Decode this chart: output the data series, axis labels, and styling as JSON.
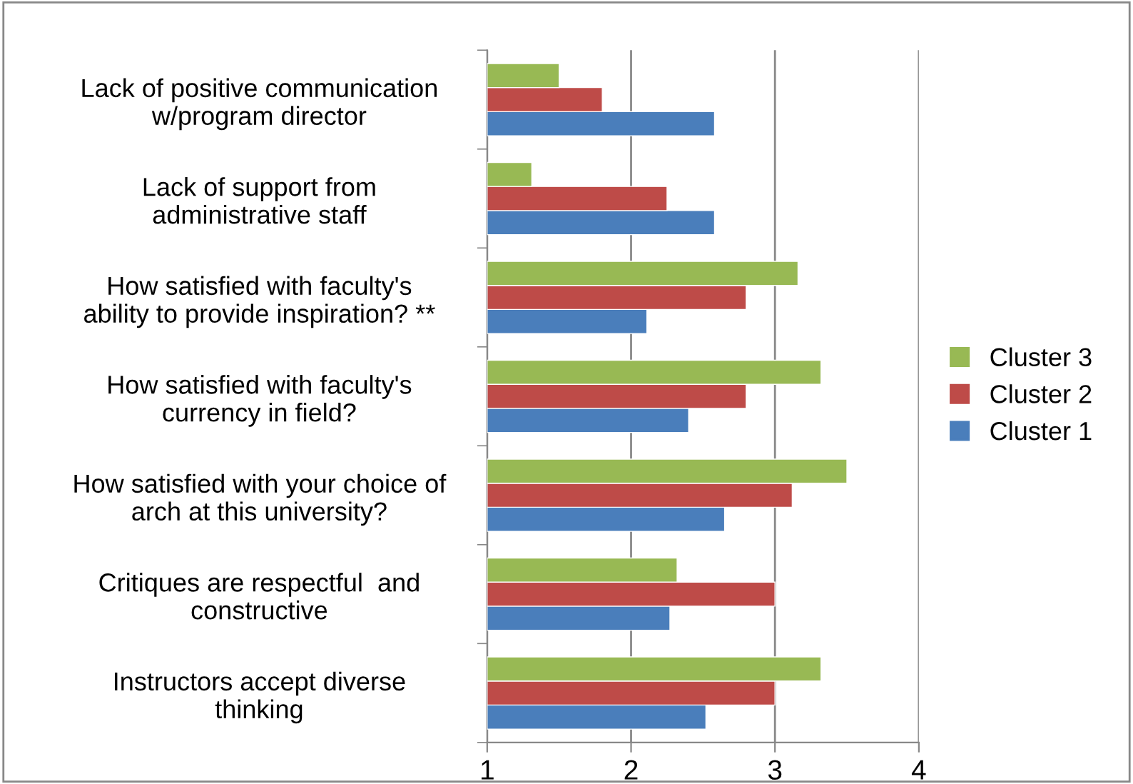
{
  "chart_data": {
    "type": "bar",
    "orientation": "horizontal",
    "categories": [
      "Lack of positive communication\nw/program director",
      "Lack of support from\nadministrative staff",
      "How satisfied with faculty's\nability to provide inspiration? **",
      "How satisfied with faculty's\ncurrency in field?",
      "How satisfied with your choice of\narch at this university?",
      "Critiques are respectful  and\nconstructive",
      "Instructors accept diverse\nthinking"
    ],
    "series": [
      {
        "name": "Cluster 1",
        "color": "#4a7ebb",
        "values": [
          2.58,
          2.58,
          2.11,
          2.4,
          2.65,
          2.27,
          2.52
        ]
      },
      {
        "name": "Cluster 2",
        "color": "#be4b48",
        "values": [
          1.8,
          2.25,
          2.8,
          2.8,
          3.12,
          3.0,
          3.0
        ]
      },
      {
        "name": "Cluster 3",
        "color": "#98b954",
        "values": [
          1.5,
          1.31,
          3.16,
          3.32,
          3.5,
          2.32,
          3.32
        ]
      }
    ],
    "xlim": [
      1,
      4
    ],
    "xticks": [
      1,
      2,
      3,
      4
    ],
    "grid": "x",
    "legend": "right"
  }
}
